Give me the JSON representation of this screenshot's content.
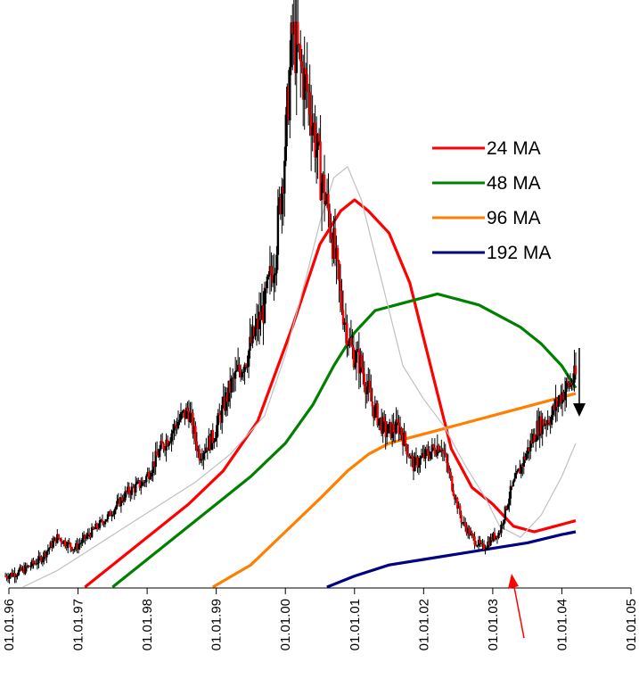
{
  "chart_data": {
    "type": "line",
    "subtype": "candlestick with moving averages",
    "title": "",
    "xlabel": "",
    "ylabel": "",
    "x_tick_labels": [
      "01.01.96",
      "01.01.97",
      "01.01.98",
      "01.01.99",
      "01.01.00",
      "01.01.01",
      "01.01.02",
      "01.01.03",
      "01.01.04",
      "01.01.05"
    ],
    "xlim": [
      1996.0,
      2005.0
    ],
    "y_axis_visible": false,
    "grid": false,
    "legend_position": "top-right",
    "price_series": {
      "name": "",
      "color": "#000000",
      "down_color": "#ff0000",
      "t": [
        1995.95,
        1996.2,
        1996.45,
        1996.7,
        1996.95,
        1997.2,
        1997.45,
        1997.7,
        1997.95,
        1998.2,
        1998.45,
        1998.6,
        1998.75,
        1998.95,
        1999.2,
        1999.45,
        1999.7,
        1999.85,
        2000.0,
        2000.1,
        2000.2,
        2000.35,
        2000.5,
        2000.65,
        2000.8,
        2000.95,
        2001.1,
        2001.25,
        2001.45,
        2001.65,
        2001.85,
        2002.05,
        2002.25,
        2002.4,
        2002.55,
        2002.7,
        2002.85,
        2003.0,
        2003.1,
        2003.25,
        2003.45,
        2003.65,
        2003.85,
        2004.0,
        2004.2
      ],
      "close": [
        2,
        3,
        5,
        9,
        7,
        10,
        13,
        17,
        19,
        25,
        30,
        32,
        24,
        27,
        36,
        42,
        51,
        60,
        80,
        100,
        95,
        88,
        75,
        66,
        52,
        43,
        40,
        33,
        28,
        29,
        22,
        24,
        26,
        19,
        12,
        9,
        7,
        9,
        10,
        17,
        23,
        29,
        31,
        35,
        38
      ]
    },
    "series": [
      {
        "name": "24 MA",
        "color": "#ff0000",
        "t": [
          1997.1,
          1997.6,
          1998.1,
          1998.6,
          1999.1,
          1999.6,
          2000.1,
          2000.5,
          2000.8,
          2001.0,
          2001.2,
          2001.5,
          2001.8,
          2002.1,
          2002.4,
          2002.7,
          2003.0,
          2003.3,
          2003.6,
          2003.9,
          2004.2
        ],
        "values": [
          0,
          5,
          10,
          15,
          21,
          30,
          47,
          62,
          68,
          70,
          68,
          64,
          55,
          40,
          25,
          18,
          15,
          11,
          10,
          11,
          12
        ]
      },
      {
        "name": "48 MA",
        "color": "#008000",
        "t": [
          1997.5,
          1998.0,
          1998.5,
          1999.0,
          1999.5,
          2000.0,
          2000.4,
          2000.7,
          2001.0,
          2001.3,
          2001.6,
          2001.9,
          2002.2,
          2002.5,
          2002.8,
          2003.1,
          2003.4,
          2003.7,
          2004.0,
          2004.2
        ],
        "values": [
          0,
          5,
          10,
          15,
          20,
          26,
          33,
          40,
          46,
          50,
          51,
          52,
          53,
          52,
          51,
          49,
          47,
          44,
          40,
          36
        ]
      },
      {
        "name": "96 MA",
        "color": "#ff7f00",
        "t": [
          1998.95,
          1999.5,
          2000.0,
          2000.5,
          2000.9,
          2001.2,
          2001.5,
          2001.8,
          2002.1,
          2002.4,
          2002.7,
          2003.0,
          2003.3,
          2003.6,
          2003.9,
          2004.2
        ],
        "values": [
          0,
          4,
          10,
          16,
          21,
          24,
          26,
          27,
          28,
          29,
          30,
          31,
          32,
          33,
          34,
          35
        ]
      },
      {
        "name": "192 MA",
        "color": "#000080",
        "t": [
          2000.6,
          2001.0,
          2001.5,
          2002.0,
          2002.5,
          2003.0,
          2003.5,
          2004.0,
          2004.2
        ],
        "values": [
          0,
          2,
          4,
          5,
          6,
          7,
          8,
          9.5,
          10
        ]
      },
      {
        "name": "",
        "color": "#c0c0c0",
        "t": [
          1996.2,
          1996.7,
          1997.2,
          1997.7,
          1998.2,
          1998.7,
          1999.2,
          1999.7,
          2000.0,
          2000.3,
          2000.5,
          2000.7,
          2000.9,
          2001.1,
          2001.3,
          2001.5,
          2001.7,
          2002.0,
          2002.3,
          2002.6,
          2002.9,
          2003.1,
          2003.4,
          2003.7,
          2004.0,
          2004.2
        ],
        "values": [
          0,
          3,
          7,
          11,
          15,
          19,
          24,
          31,
          42,
          56,
          66,
          74,
          76,
          70,
          60,
          50,
          40,
          34,
          29,
          22,
          16,
          11,
          9,
          13,
          20,
          26
        ]
      }
    ],
    "annotations": [
      {
        "type": "arrow",
        "color": "#000000",
        "direction": "down",
        "points_to": "crossover near 01.04.04"
      },
      {
        "type": "arrow",
        "color": "#ff0000",
        "direction": "up",
        "points_to": "low near 01.03.03"
      }
    ]
  }
}
